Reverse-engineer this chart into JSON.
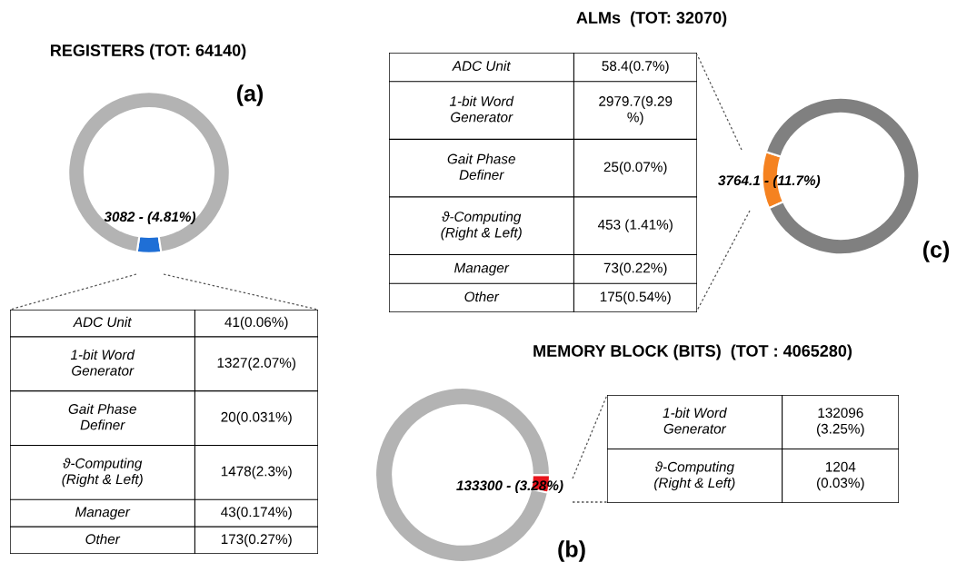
{
  "chart_data": [
    {
      "type": "donut",
      "title": "REGISTERS (TOT: 64140)",
      "categories": [
        null,
        null
      ],
      "values": [
        4.81,
        95.19
      ],
      "colors": [
        "#1f6fd6",
        "#b3b3b3"
      ],
      "value_labels": [
        "3082 - (4.81%)",
        null
      ],
      "annotations": [
        "(a)"
      ]
    },
    {
      "type": "other",
      "categories": [
        "ADC Unit",
        "1-bit Word\nGenerator",
        "Gait Phase\nDefiner",
        "ϑ-Computing\n(Right & Left)",
        "Manager",
        "Other"
      ],
      "annotations": [
        "41(0.06%)",
        "1327(2.07%)",
        "20(0.031%)",
        "1478(2.3%)",
        "43(0.174%)",
        "173(0.27%)"
      ]
    },
    {
      "type": "donut",
      "title": "ALMs  (TOT: 32070)",
      "categories": [
        null,
        null
      ],
      "values": [
        11.7,
        88.3
      ],
      "colors": [
        "#f58220",
        "#808080"
      ],
      "value_labels": [
        "3764.1 - (11.7%)",
        null
      ],
      "annotations": [
        "(c)"
      ]
    },
    {
      "type": "other",
      "categories": [
        "ADC Unit",
        "1-bit Word\nGenerator",
        "Gait Phase\nDefiner",
        "ϑ-Computing\n(Right & Left)",
        "Manager",
        "Other"
      ],
      "annotations": [
        "58.4(0.7%)",
        "2979.7(9.29\n%)",
        "25(0.07%)",
        "453 (1.41%)",
        "73(0.22%)",
        "175(0.54%)"
      ]
    },
    {
      "type": "donut",
      "title": "MEMORY BLOCK (BITS)  (TOT : 4065280)",
      "categories": [
        null,
        null
      ],
      "values": [
        3.28,
        96.72
      ],
      "colors": [
        "#e8141c",
        "#b3b3b3"
      ],
      "value_labels": [
        "133300 - (3.28%)",
        null
      ],
      "annotations": [
        "(b)"
      ]
    },
    {
      "type": "other",
      "categories": [
        "1-bit Word\nGenerator",
        "ϑ-Computing\n(Right & Left)"
      ],
      "annotations": [
        "132096\n(3.25%)",
        "1204\n(0.03%)"
      ]
    }
  ]
}
